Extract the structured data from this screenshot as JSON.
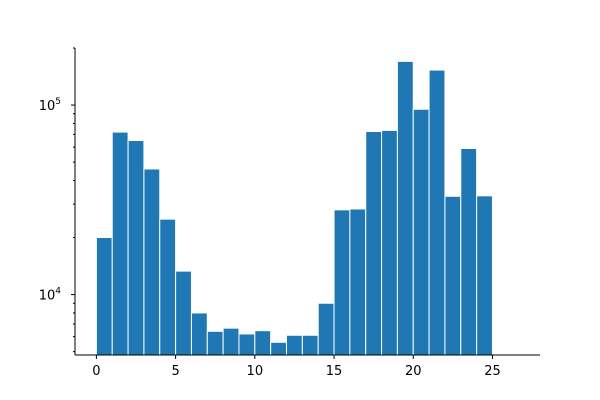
{
  "chart_data": {
    "type": "bar",
    "title": "",
    "xlabel": "",
    "ylabel": "",
    "y_scale": "log",
    "xlim": [
      -1.35,
      28.0
    ],
    "ylim": [
      4800,
      200000
    ],
    "bar_color": "#1f77b4",
    "bar_edge_color": "#ffffff",
    "grid": false,
    "bin_width": 1.0,
    "x": [
      0,
      1,
      2,
      3,
      4,
      5,
      6,
      7,
      8,
      9,
      10,
      11,
      12,
      13,
      14,
      15,
      16,
      17,
      18,
      19,
      20,
      21,
      22,
      23,
      24,
      25,
      26
    ],
    "values": [
      20000,
      72000,
      65000,
      46000,
      25000,
      13300,
      8000,
      6400,
      6650,
      6200,
      6450,
      5600,
      6100,
      6100,
      9000,
      28000,
      28300,
      72500,
      73500,
      170000,
      95000,
      153000,
      33000,
      59000,
      33200,
      null,
      null
    ],
    "x_ticks": [
      {
        "value": 0,
        "label": "0"
      },
      {
        "value": 5,
        "label": "5"
      },
      {
        "value": 10,
        "label": "10"
      },
      {
        "value": 15,
        "label": "15"
      },
      {
        "value": 20,
        "label": "20"
      },
      {
        "value": 25,
        "label": "25"
      }
    ],
    "y_ticks": [
      {
        "value": 10000,
        "base": "10",
        "exp": "4"
      },
      {
        "value": 100000,
        "base": "10",
        "exp": "5"
      }
    ]
  }
}
